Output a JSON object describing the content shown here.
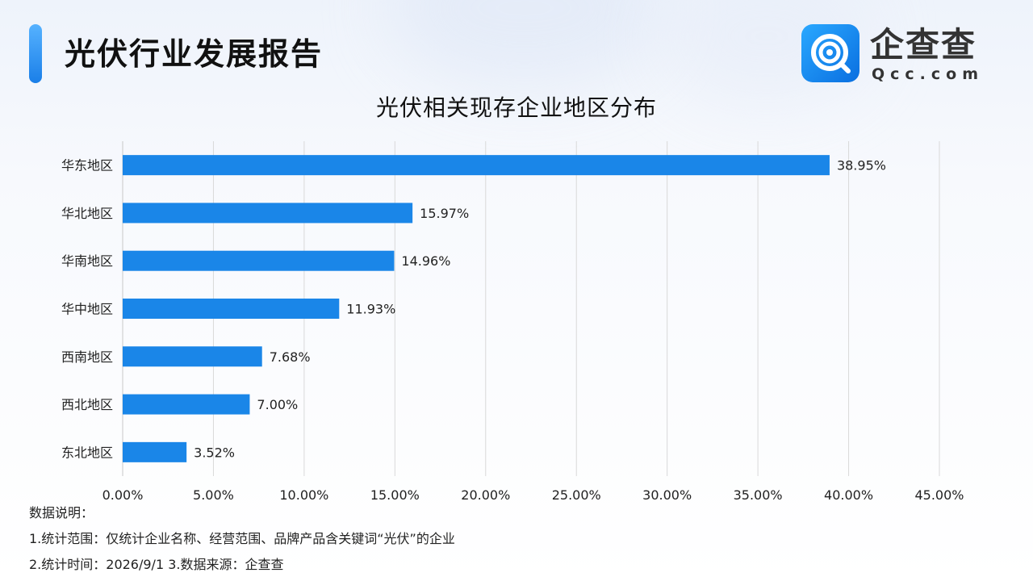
{
  "header": {
    "title": "光伏行业发展报告",
    "logo_text": "企查查",
    "logo_domain": "Qcc.com",
    "logo_icon": "qcc-magnifier-icon"
  },
  "colors": {
    "bar": "#1a86e8",
    "accent": "#2a8cf0",
    "grid": "#d9d9d9"
  },
  "chart_data": {
    "type": "bar",
    "orientation": "horizontal",
    "title": "光伏相关现存企业地区分布",
    "categories": [
      "华东地区",
      "华北地区",
      "华南地区",
      "华中地区",
      "西南地区",
      "西北地区",
      "东北地区"
    ],
    "values": [
      38.95,
      15.97,
      14.96,
      11.93,
      7.68,
      7.0,
      3.52
    ],
    "value_labels": [
      "38.95%",
      "15.97%",
      "14.96%",
      "11.93%",
      "7.68%",
      "7.00%",
      "3.52%"
    ],
    "xlim": [
      0,
      45
    ],
    "x_ticks": [
      0,
      5,
      10,
      15,
      20,
      25,
      30,
      35,
      40,
      45
    ],
    "x_tick_labels": [
      "0.00%",
      "5.00%",
      "10.00%",
      "15.00%",
      "20.00%",
      "25.00%",
      "30.00%",
      "35.00%",
      "40.00%",
      "45.00%"
    ],
    "grid": "vertical",
    "legend": "none"
  },
  "notes": {
    "heading": "数据说明：",
    "line1": "1.统计范围：仅统计企业名称、经营范围、品牌产品含关键词“光伏”的企业",
    "line2": "2.统计时间：2026/9/1 3.数据来源：企查查"
  }
}
